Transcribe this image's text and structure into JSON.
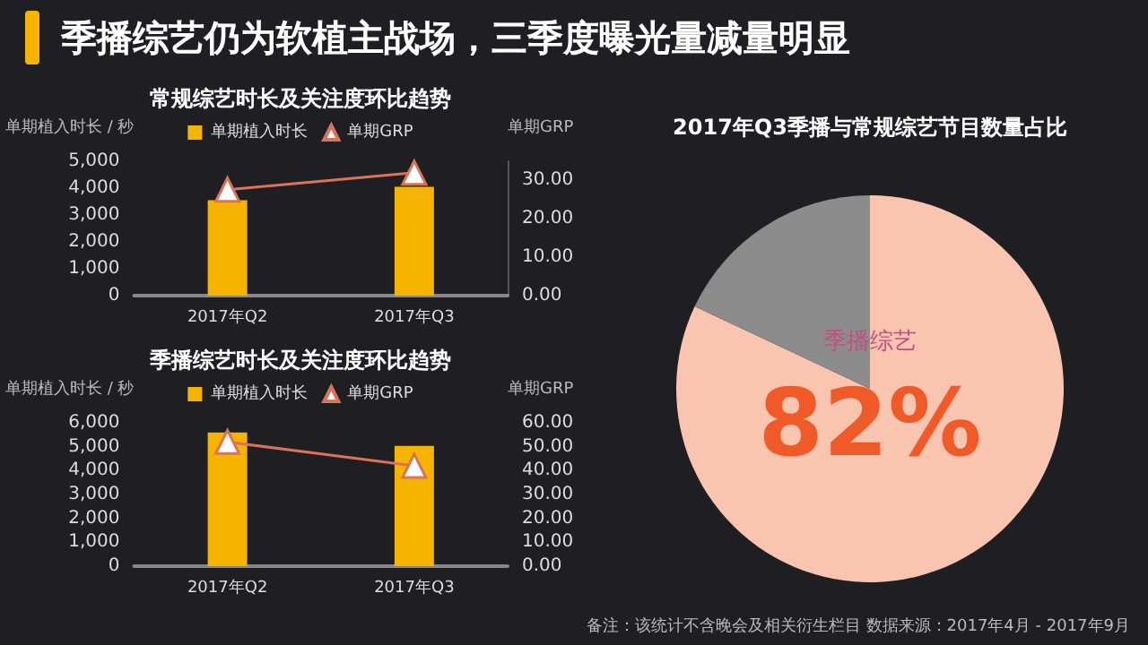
{
  "chart_data": [
    {
      "type": "other",
      "title": "季播综艺仍为软植主战场，三季度曝光量减量明显",
      "annotations": [
        "备注：该统计不含晚会及相关衍生栏目 数据来源：2017年4月 - 2017年9月"
      ]
    },
    {
      "type": "bar",
      "title": "常规综艺时长及关注度环比趋势",
      "ylabel": "单期植入时长 / 秒",
      "y2label": "单期GRP",
      "categories": [
        "2017年Q2",
        "2017年Q3"
      ],
      "series": [
        {
          "name": "单期植入时长",
          "type": "bar",
          "color": "#f5b400",
          "values": [
            3550,
            4050
          ]
        },
        {
          "name": "单期GRP",
          "type": "line",
          "axis": "y2",
          "color": "#d9735a",
          "marker": "triangle",
          "values": [
            27.6,
            32
          ]
        }
      ],
      "ylim": [
        0,
        5000
      ],
      "yticks": [
        0,
        {
          "value": 1000,
          "label": "1,000"
        },
        {
          "value": 2000,
          "label": "2,000"
        },
        {
          "value": 3000,
          "label": "3,000"
        },
        {
          "value": 4000,
          "label": "4,000"
        },
        {
          "value": 5000,
          "label": "5,000"
        }
      ],
      "y2lim": [
        0,
        35
      ],
      "y2ticks": [
        {
          "value": 0,
          "label": "0.00"
        },
        {
          "value": 10,
          "label": "10.00"
        },
        {
          "value": 20,
          "label": "20.00"
        },
        {
          "value": 30,
          "label": "30.00"
        }
      ],
      "legend": "top",
      "grid": false
    },
    {
      "type": "bar",
      "title": "季播综艺时长及关注度环比趋势",
      "ylabel": "单期植入时长 / 秒",
      "y2label": "单期GRP",
      "categories": [
        "2017年Q2",
        "2017年Q3"
      ],
      "series": [
        {
          "name": "单期植入时长",
          "type": "bar",
          "color": "#f5b400",
          "values": [
            5600,
            5030
          ]
        },
        {
          "name": "单期GRP",
          "type": "line",
          "axis": "y2",
          "color": "#d9735a",
          "marker": "triangle",
          "values": [
            52,
            42
          ]
        }
      ],
      "ylim": [
        0,
        6000
      ],
      "yticks": [
        0,
        {
          "value": 1000,
          "label": "1,000"
        },
        {
          "value": 2000,
          "label": "2,000"
        },
        {
          "value": 3000,
          "label": "3,000"
        },
        {
          "value": 4000,
          "label": "4,000"
        },
        {
          "value": 5000,
          "label": "5,000"
        },
        {
          "value": 6000,
          "label": "6,000"
        }
      ],
      "y2lim": [
        0,
        60
      ],
      "y2ticks": [
        {
          "value": 0,
          "label": "0.00"
        },
        {
          "value": 10,
          "label": "10.00"
        },
        {
          "value": 20,
          "label": "20.00"
        },
        {
          "value": 30,
          "label": "30.00"
        },
        {
          "value": 40,
          "label": "40.00"
        },
        {
          "value": 50,
          "label": "50.00"
        },
        {
          "value": 60,
          "label": "60.00"
        }
      ],
      "legend": "top",
      "grid": false
    },
    {
      "type": "pie",
      "title": "2017年Q3季播与常规综艺节目数量占比",
      "categories": [
        "季播综艺",
        null
      ],
      "values": [
        82,
        18
      ],
      "colors": [
        "#f9c4b0",
        "#8c8c8c"
      ],
      "value_labels": [
        "82%",
        null
      ]
    }
  ]
}
